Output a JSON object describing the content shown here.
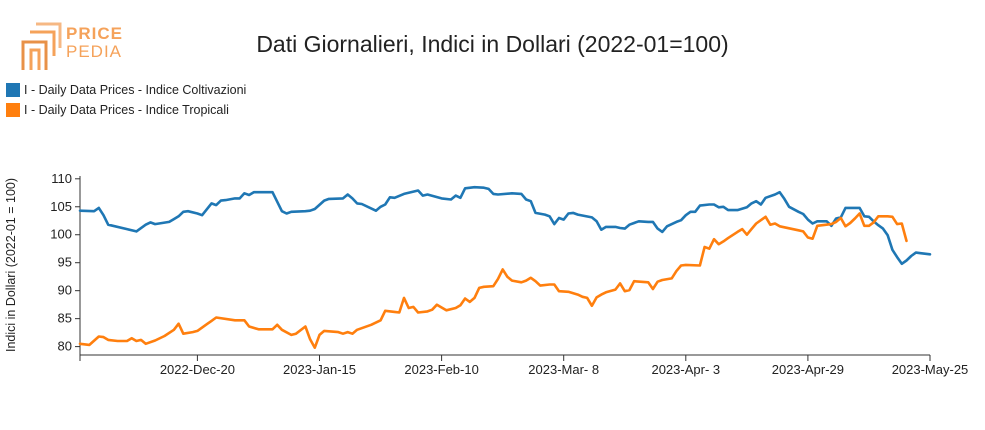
{
  "logo": {
    "top": "PRICE",
    "bottom": "PEDIA"
  },
  "chart_data": {
    "type": "line",
    "title": "Dati Giornalieri, Indici in Dollari (2022-01=100)",
    "ylabel": "Indici in Dollari (2022-01 = 100)",
    "xlabel": "",
    "ylim": [
      78.5,
      110.5
    ],
    "yticks": [
      80,
      85,
      90,
      95,
      100,
      105,
      110
    ],
    "xlim": [
      "2022-11-25",
      "2023-05-25"
    ],
    "xticks": [
      {
        "date": "2022-12-20",
        "label": "2022-Dec-20"
      },
      {
        "date": "2023-01-15",
        "label": "2023-Jan-15"
      },
      {
        "date": "2023-02-10",
        "label": "2023-Feb-10"
      },
      {
        "date": "2023-03-08",
        "label": "2023-Mar- 8"
      },
      {
        "date": "2023-04-03",
        "label": "2023-Apr- 3"
      },
      {
        "date": "2023-04-29",
        "label": "2023-Apr-29"
      },
      {
        "date": "2023-05-25",
        "label": "2023-May-25"
      }
    ],
    "grid": false,
    "legend_position": "top-left",
    "series": [
      {
        "name": "I - Daily Data Prices - Indice Coltivazioni",
        "color": "#1f77b4",
        "points": [
          [
            "2022-11-25",
            104.3
          ],
          [
            "2022-11-28",
            104.2
          ],
          [
            "2022-11-29",
            104.8
          ],
          [
            "2022-11-30",
            103.5
          ],
          [
            "2022-12-01",
            101.8
          ],
          [
            "2022-12-05",
            101.0
          ],
          [
            "2022-12-07",
            100.6
          ],
          [
            "2022-12-09",
            101.8
          ],
          [
            "2022-12-10",
            102.2
          ],
          [
            "2022-12-11",
            101.9
          ],
          [
            "2022-12-14",
            102.3
          ],
          [
            "2022-12-15",
            102.8
          ],
          [
            "2022-12-16",
            103.3
          ],
          [
            "2022-12-17",
            104.1
          ],
          [
            "2022-12-18",
            104.2
          ],
          [
            "2022-12-20",
            103.8
          ],
          [
            "2022-12-21",
            103.5
          ],
          [
            "2022-12-23",
            105.6
          ],
          [
            "2022-12-24",
            105.3
          ],
          [
            "2022-12-25",
            106.1
          ],
          [
            "2022-12-26",
            106.2
          ],
          [
            "2022-12-28",
            106.5
          ],
          [
            "2022-12-29",
            106.5
          ],
          [
            "2022-12-30",
            107.4
          ],
          [
            "2022-12-31",
            107.1
          ],
          [
            "2023-01-01",
            107.6
          ],
          [
            "2023-01-05",
            107.6
          ],
          [
            "2023-01-07",
            104.2
          ],
          [
            "2023-01-08",
            103.8
          ],
          [
            "2023-01-09",
            104.1
          ],
          [
            "2023-01-12",
            104.2
          ],
          [
            "2023-01-13",
            104.3
          ],
          [
            "2023-01-14",
            104.6
          ],
          [
            "2023-01-16",
            106.1
          ],
          [
            "2023-01-17",
            106.4
          ],
          [
            "2023-01-20",
            106.5
          ],
          [
            "2023-01-21",
            107.2
          ],
          [
            "2023-01-22",
            106.5
          ],
          [
            "2023-01-23",
            105.6
          ],
          [
            "2023-01-24",
            105.5
          ],
          [
            "2023-01-27",
            104.3
          ],
          [
            "2023-01-28",
            105.0
          ],
          [
            "2023-01-29",
            105.4
          ],
          [
            "2023-01-30",
            106.7
          ],
          [
            "2023-01-31",
            106.6
          ],
          [
            "2023-02-02",
            107.3
          ],
          [
            "2023-02-05",
            107.9
          ],
          [
            "2023-02-06",
            107.0
          ],
          [
            "2023-02-07",
            107.2
          ],
          [
            "2023-02-10",
            106.5
          ],
          [
            "2023-02-12",
            106.3
          ],
          [
            "2023-02-13",
            107.0
          ],
          [
            "2023-02-14",
            106.6
          ],
          [
            "2023-02-15",
            108.3
          ],
          [
            "2023-02-17",
            108.5
          ],
          [
            "2023-02-19",
            108.4
          ],
          [
            "2023-02-20",
            108.2
          ],
          [
            "2023-02-21",
            107.3
          ],
          [
            "2023-02-22",
            107.2
          ],
          [
            "2023-02-25",
            107.4
          ],
          [
            "2023-02-27",
            107.3
          ],
          [
            "2023-02-28",
            106.3
          ],
          [
            "2023-03-01",
            106.0
          ],
          [
            "2023-03-02",
            103.9
          ],
          [
            "2023-03-04",
            103.6
          ],
          [
            "2023-03-05",
            103.3
          ],
          [
            "2023-03-06",
            101.9
          ],
          [
            "2023-03-07",
            103.0
          ],
          [
            "2023-03-08",
            102.7
          ],
          [
            "2023-03-09",
            103.8
          ],
          [
            "2023-03-10",
            103.9
          ],
          [
            "2023-03-11",
            103.6
          ],
          [
            "2023-03-14",
            103.1
          ],
          [
            "2023-03-15",
            102.4
          ],
          [
            "2023-03-16",
            100.9
          ],
          [
            "2023-03-17",
            101.4
          ],
          [
            "2023-03-19",
            101.4
          ],
          [
            "2023-03-20",
            101.2
          ],
          [
            "2023-03-21",
            101.1
          ],
          [
            "2023-03-22",
            101.8
          ],
          [
            "2023-03-24",
            102.4
          ],
          [
            "2023-03-26",
            102.3
          ],
          [
            "2023-03-27",
            102.3
          ],
          [
            "2023-03-28",
            101.1
          ],
          [
            "2023-03-29",
            100.5
          ],
          [
            "2023-03-30",
            101.5
          ],
          [
            "2023-04-01",
            102.3
          ],
          [
            "2023-04-02",
            102.6
          ],
          [
            "2023-04-03",
            103.5
          ],
          [
            "2023-04-04",
            104.1
          ],
          [
            "2023-04-05",
            104.1
          ],
          [
            "2023-04-06",
            105.2
          ],
          [
            "2023-04-08",
            105.4
          ],
          [
            "2023-04-09",
            105.4
          ],
          [
            "2023-04-10",
            104.9
          ],
          [
            "2023-04-11",
            105.0
          ],
          [
            "2023-04-12",
            104.4
          ],
          [
            "2023-04-14",
            104.4
          ],
          [
            "2023-04-16",
            104.9
          ],
          [
            "2023-04-17",
            105.6
          ],
          [
            "2023-04-18",
            106.0
          ],
          [
            "2023-04-19",
            105.4
          ],
          [
            "2023-04-20",
            106.6
          ],
          [
            "2023-04-22",
            107.2
          ],
          [
            "2023-04-23",
            107.6
          ],
          [
            "2023-04-24",
            106.4
          ],
          [
            "2023-04-25",
            105.0
          ],
          [
            "2023-04-27",
            104.1
          ],
          [
            "2023-04-28",
            103.7
          ],
          [
            "2023-04-29",
            102.7
          ],
          [
            "2023-04-30",
            102.0
          ],
          [
            "2023-05-01",
            102.4
          ],
          [
            "2023-05-03",
            102.4
          ],
          [
            "2023-05-04",
            101.6
          ],
          [
            "2023-05-05",
            102.9
          ],
          [
            "2023-05-06",
            103.1
          ],
          [
            "2023-05-07",
            104.8
          ],
          [
            "2023-05-10",
            104.8
          ],
          [
            "2023-05-11",
            103.3
          ],
          [
            "2023-05-12",
            103.2
          ],
          [
            "2023-05-13",
            102.4
          ],
          [
            "2023-05-14",
            101.7
          ],
          [
            "2023-05-15",
            101.1
          ],
          [
            "2023-05-16",
            99.9
          ],
          [
            "2023-05-17",
            97.3
          ],
          [
            "2023-05-18",
            96.0
          ],
          [
            "2023-05-19",
            94.8
          ],
          [
            "2023-05-20",
            95.4
          ],
          [
            "2023-05-21",
            96.2
          ],
          [
            "2023-05-22",
            96.8
          ],
          [
            "2023-05-23",
            96.7
          ],
          [
            "2023-05-25",
            96.5
          ]
        ]
      },
      {
        "name": "I - Daily Data Prices - Indice Tropicali",
        "color": "#ff7f0e",
        "points": [
          [
            "2022-11-25",
            80.5
          ],
          [
            "2022-11-27",
            80.3
          ],
          [
            "2022-11-29",
            81.8
          ],
          [
            "2022-11-30",
            81.7
          ],
          [
            "2022-12-01",
            81.2
          ],
          [
            "2022-12-03",
            81.0
          ],
          [
            "2022-12-05",
            81.0
          ],
          [
            "2022-12-06",
            81.5
          ],
          [
            "2022-12-07",
            81.0
          ],
          [
            "2022-12-08",
            81.2
          ],
          [
            "2022-12-09",
            80.5
          ],
          [
            "2022-12-11",
            81.1
          ],
          [
            "2022-12-13",
            81.9
          ],
          [
            "2022-12-15",
            83.0
          ],
          [
            "2022-12-16",
            84.1
          ],
          [
            "2022-12-17",
            82.3
          ],
          [
            "2022-12-19",
            82.6
          ],
          [
            "2022-12-20",
            82.8
          ],
          [
            "2022-12-22",
            84.0
          ],
          [
            "2022-12-23",
            84.6
          ],
          [
            "2022-12-24",
            85.2
          ],
          [
            "2022-12-28",
            84.7
          ],
          [
            "2022-12-30",
            84.7
          ],
          [
            "2022-12-31",
            83.6
          ],
          [
            "2023-01-02",
            83.1
          ],
          [
            "2023-01-05",
            83.1
          ],
          [
            "2023-01-06",
            83.9
          ],
          [
            "2023-01-07",
            83.0
          ],
          [
            "2023-01-09",
            82.1
          ],
          [
            "2023-01-10",
            82.3
          ],
          [
            "2023-01-12",
            83.6
          ],
          [
            "2023-01-13",
            81.3
          ],
          [
            "2023-01-14",
            79.8
          ],
          [
            "2023-01-15",
            82.1
          ],
          [
            "2023-01-16",
            82.8
          ],
          [
            "2023-01-19",
            82.6
          ],
          [
            "2023-01-20",
            82.3
          ],
          [
            "2023-01-21",
            82.6
          ],
          [
            "2023-01-22",
            82.3
          ],
          [
            "2023-01-23",
            83.0
          ],
          [
            "2023-01-26",
            83.9
          ],
          [
            "2023-01-28",
            84.7
          ],
          [
            "2023-01-29",
            86.4
          ],
          [
            "2023-01-31",
            86.2
          ],
          [
            "2023-02-01",
            86.1
          ],
          [
            "2023-02-02",
            88.7
          ],
          [
            "2023-02-03",
            86.9
          ],
          [
            "2023-02-04",
            87.1
          ],
          [
            "2023-02-05",
            86.1
          ],
          [
            "2023-02-07",
            86.3
          ],
          [
            "2023-02-08",
            86.6
          ],
          [
            "2023-02-09",
            87.5
          ],
          [
            "2023-02-10",
            87.0
          ],
          [
            "2023-02-11",
            86.5
          ],
          [
            "2023-02-13",
            86.9
          ],
          [
            "2023-02-14",
            87.4
          ],
          [
            "2023-02-15",
            88.6
          ],
          [
            "2023-02-16",
            88.0
          ],
          [
            "2023-02-17",
            88.7
          ],
          [
            "2023-02-18",
            90.5
          ],
          [
            "2023-02-19",
            90.7
          ],
          [
            "2023-02-21",
            90.8
          ],
          [
            "2023-02-22",
            92.1
          ],
          [
            "2023-02-23",
            93.8
          ],
          [
            "2023-02-24",
            92.5
          ],
          [
            "2023-02-25",
            91.8
          ],
          [
            "2023-02-27",
            91.5
          ],
          [
            "2023-02-28",
            91.8
          ],
          [
            "2023-03-01",
            92.3
          ],
          [
            "2023-03-02",
            91.7
          ],
          [
            "2023-03-03",
            90.9
          ],
          [
            "2023-03-05",
            91.1
          ],
          [
            "2023-03-06",
            91.1
          ],
          [
            "2023-03-07",
            89.9
          ],
          [
            "2023-03-09",
            89.8
          ],
          [
            "2023-03-11",
            89.3
          ],
          [
            "2023-03-12",
            88.9
          ],
          [
            "2023-03-13",
            88.7
          ],
          [
            "2023-03-14",
            87.3
          ],
          [
            "2023-03-15",
            88.8
          ],
          [
            "2023-03-16",
            89.3
          ],
          [
            "2023-03-17",
            89.7
          ],
          [
            "2023-03-19",
            90.2
          ],
          [
            "2023-03-20",
            91.3
          ],
          [
            "2023-03-21",
            89.9
          ],
          [
            "2023-03-22",
            90.1
          ],
          [
            "2023-03-23",
            91.7
          ],
          [
            "2023-03-26",
            91.5
          ],
          [
            "2023-03-27",
            90.3
          ],
          [
            "2023-03-28",
            91.6
          ],
          [
            "2023-03-29",
            91.9
          ],
          [
            "2023-03-31",
            92.2
          ],
          [
            "2023-04-01",
            93.5
          ],
          [
            "2023-04-02",
            94.5
          ],
          [
            "2023-04-03",
            94.6
          ],
          [
            "2023-04-06",
            94.5
          ],
          [
            "2023-04-07",
            97.8
          ],
          [
            "2023-04-08",
            97.5
          ],
          [
            "2023-04-09",
            99.2
          ],
          [
            "2023-04-10",
            98.3
          ],
          [
            "2023-04-11",
            98.8
          ],
          [
            "2023-04-12",
            99.4
          ],
          [
            "2023-04-14",
            100.5
          ],
          [
            "2023-04-15",
            101.0
          ],
          [
            "2023-04-16",
            100.0
          ],
          [
            "2023-04-17",
            101.0
          ],
          [
            "2023-04-18",
            102.0
          ],
          [
            "2023-04-20",
            103.2
          ],
          [
            "2023-04-21",
            101.8
          ],
          [
            "2023-04-22",
            102.0
          ],
          [
            "2023-04-23",
            101.5
          ],
          [
            "2023-04-27",
            100.8
          ],
          [
            "2023-04-28",
            100.6
          ],
          [
            "2023-04-29",
            99.5
          ],
          [
            "2023-04-30",
            99.3
          ],
          [
            "2023-05-01",
            101.6
          ],
          [
            "2023-05-04",
            101.9
          ],
          [
            "2023-05-05",
            102.3
          ],
          [
            "2023-05-06",
            103.0
          ],
          [
            "2023-05-07",
            101.5
          ],
          [
            "2023-05-08",
            102.1
          ],
          [
            "2023-05-09",
            102.9
          ],
          [
            "2023-05-10",
            103.8
          ],
          [
            "2023-05-11",
            101.6
          ],
          [
            "2023-05-12",
            101.6
          ],
          [
            "2023-05-13",
            102.2
          ],
          [
            "2023-05-14",
            103.3
          ],
          [
            "2023-05-16",
            103.3
          ],
          [
            "2023-05-17",
            103.2
          ],
          [
            "2023-05-18",
            101.9
          ],
          [
            "2023-05-19",
            102.0
          ],
          [
            "2023-05-20",
            98.9
          ]
        ]
      }
    ]
  }
}
